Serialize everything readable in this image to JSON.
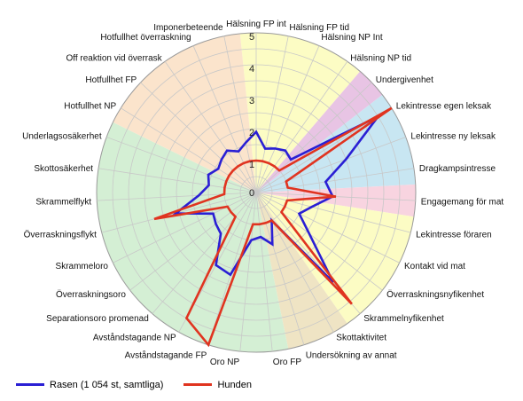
{
  "chart_data": {
    "type": "radar",
    "title": "",
    "r_min": 0,
    "r_max": 5,
    "r_ticks": [
      "1",
      "2",
      "3",
      "4",
      "5"
    ],
    "categories": [
      "Hälsning FP int",
      "Hälsning FP tid",
      "Hälsning NP Int",
      "Hälsning NP tid",
      "Undergivenhet",
      "Lekintresse egen leksak",
      "Lekintresse ny leksak",
      "Dragkampsintresse",
      "Engagemang för mat",
      "Lekintresse föraren",
      "Kontakt vid mat",
      "Överraskningsnyfikenhet",
      "Skrammelnyfikenhet",
      "Skottaktivitet",
      "Undersökning av annat",
      "Oro FP",
      "Oro NP",
      "Avståndstagande FP",
      "Avståndstagande NP",
      "Separationsoro promenad",
      "Överraskningsoro",
      "Skrammeloro",
      "Överraskningsflykt",
      "Skrammelflykt",
      "Skottosäkerhet",
      "Underlagsosäkerhet",
      "Hotfullhet NP",
      "Hotfullhet FP",
      "Off reaktion vid överrask",
      "Hotfullhet överraskning",
      "Imponerbeteende"
    ],
    "sectors": [
      {
        "from": 0,
        "to": 3,
        "color": "#fcfcc4"
      },
      {
        "from": 4,
        "to": 4,
        "color": "#e8c4e4"
      },
      {
        "from": 5,
        "to": 7,
        "color": "#c8e6f2"
      },
      {
        "from": 8,
        "to": 8,
        "color": "#f8d4e0"
      },
      {
        "from": 9,
        "to": 12,
        "color": "#fcfcc4"
      },
      {
        "from": 13,
        "to": 14,
        "color": "#efe4c4"
      },
      {
        "from": 15,
        "to": 25,
        "color": "#d4efd4"
      },
      {
        "from": 26,
        "to": 30,
        "color": "#fbe4cc"
      }
    ],
    "series": [
      {
        "name": "Rasen (1 054 st, samtliga)",
        "color": "#2a1fd4",
        "values": [
          1.9,
          1.4,
          1.5,
          1.6,
          1.5,
          4.5,
          3.0,
          2.2,
          2.4,
          1.8,
          1.5,
          2.1,
          3.7,
          1.0,
          1.7,
          1.4,
          1.5,
          2.7,
          2.6,
          1.7,
          1.6,
          1.5,
          2.6,
          1.8,
          1.5,
          1.6,
          1.4,
          1.5,
          1.6,
          1.4,
          1.6
        ]
      },
      {
        "name": "Hunden",
        "color": "#e03420",
        "values": [
          1.0,
          1.0,
          1.0,
          1.0,
          1.0,
          5.0,
          1.0,
          1.0,
          2.5,
          1.0,
          1.0,
          1.0,
          4.6,
          1.0,
          1.0,
          1.0,
          1.0,
          5.0,
          4.5,
          1.0,
          1.0,
          1.0,
          3.3,
          1.0,
          1.0,
          1.0,
          1.0,
          1.0,
          1.0,
          1.0,
          1.0
        ]
      }
    ],
    "legend_position": "bottom-left"
  }
}
